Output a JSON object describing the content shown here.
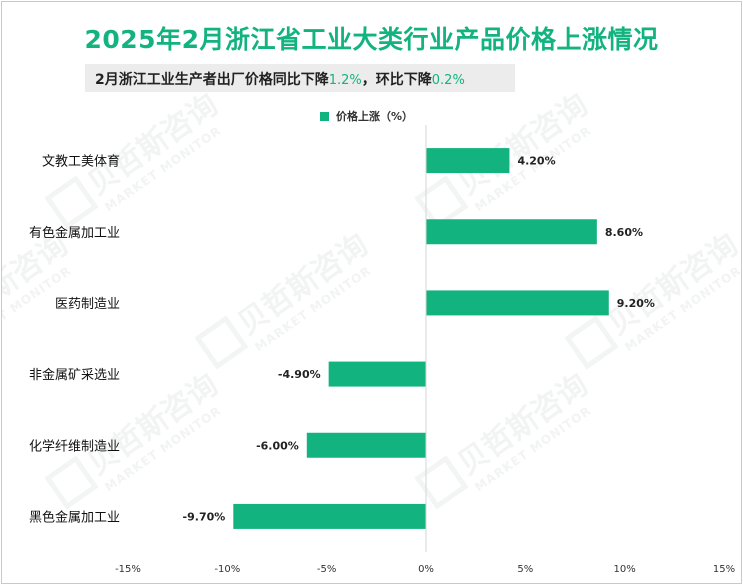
{
  "chart_data": {
    "type": "bar",
    "orientation": "horizontal",
    "title": "2025年2月浙江省工业大类行业产品价格上涨情况",
    "subtitle": {
      "prefix": "2月浙江工业生产者出厂价格同比下降",
      "yoy": "1.2%",
      "middle": "，环比下降",
      "mom": "0.2%"
    },
    "legend": "价格上涨（%）",
    "categories": [
      "文教工美体育",
      "有色金属加工业",
      "医药制造业",
      "非金属矿采选业",
      "化学纤维制造业",
      "黑色金属加工业"
    ],
    "values": [
      4.2,
      8.6,
      9.2,
      -4.9,
      -6.0,
      -9.7
    ],
    "data_labels": [
      "4.20%",
      "8.60%",
      "9.20%",
      "-4.90%",
      "-6.00%",
      "-9.70%"
    ],
    "xlim": [
      -15,
      15
    ],
    "xticks": [
      -15,
      -10,
      -5,
      0,
      5,
      10,
      15
    ],
    "xtick_labels": [
      "-15%",
      "-10%",
      "-5%",
      "0%",
      "5%",
      "10%",
      "15%"
    ],
    "color": "#13b37f",
    "grid": false
  },
  "watermark": {
    "cn": "贝哲斯咨询",
    "en": "MARKET MONITOR"
  }
}
